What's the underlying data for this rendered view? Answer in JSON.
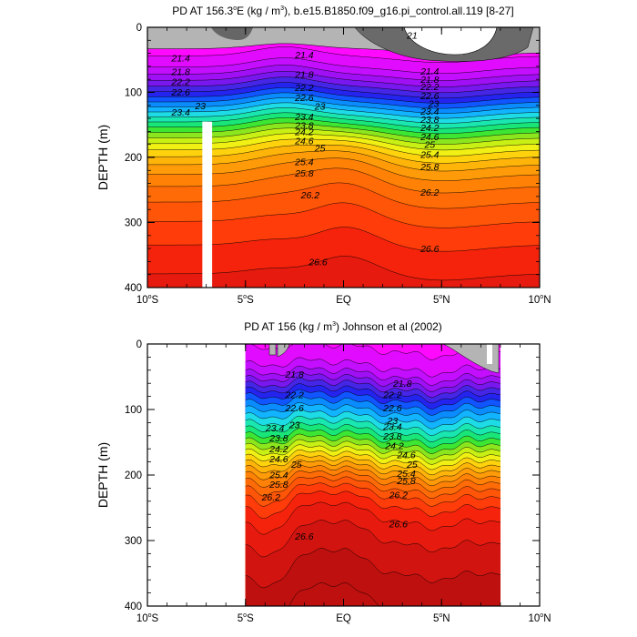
{
  "chart_data": [
    {
      "type": "contour",
      "title": "PD AT 156.3°E (kg / m3), b.e15.B1850.f09_g16.pi_control.all.119 [8-27]",
      "title_parts": {
        "lead": "PD AT 156.3",
        "deg": "o",
        "mid": "E (kg / m",
        "sup": "3",
        "tail": "), b.e15.B1850.f09_g16.pi_control.all.119 [8-27]"
      },
      "ylabel": "DEPTH (m)",
      "xlim": [
        -10,
        10
      ],
      "ylim": [
        400,
        0
      ],
      "x_ticks": [
        {
          "v": -10,
          "num": "10",
          "deg": "o",
          "hem": "S"
        },
        {
          "v": -5,
          "num": "5",
          "deg": "o",
          "hem": "S"
        },
        {
          "v": 0,
          "num": "EQ",
          "deg": "",
          "hem": ""
        },
        {
          "v": 5,
          "num": "5",
          "deg": "o",
          "hem": "N"
        },
        {
          "v": 10,
          "num": "10",
          "deg": "o",
          "hem": "N"
        }
      ],
      "y_ticks": [
        {
          "v": 0,
          "label": "0"
        },
        {
          "v": 100,
          "label": "100"
        },
        {
          "v": 200,
          "label": "200"
        },
        {
          "v": 300,
          "label": "300"
        },
        {
          "v": 400,
          "label": "400"
        }
      ],
      "contour_labels": [
        {
          "x": -8.3,
          "d": 47,
          "text": "21.4"
        },
        {
          "x": -8.3,
          "d": 68,
          "text": "21.8"
        },
        {
          "x": -8.3,
          "d": 83,
          "text": "22.2"
        },
        {
          "x": -8.3,
          "d": 99,
          "text": "22.6"
        },
        {
          "x": -7.3,
          "d": 120,
          "text": "23"
        },
        {
          "x": -8.3,
          "d": 130,
          "text": "23.4"
        },
        {
          "x": -2,
          "d": 42,
          "text": "21.4"
        },
        {
          "x": -2,
          "d": 72,
          "text": "21.8"
        },
        {
          "x": -2,
          "d": 92,
          "text": "22.2"
        },
        {
          "x": -2,
          "d": 108,
          "text": "22.6"
        },
        {
          "x": -1.2,
          "d": 121,
          "text": "23"
        },
        {
          "x": -2,
          "d": 137,
          "text": "23.4"
        },
        {
          "x": -2,
          "d": 150,
          "text": "23.8"
        },
        {
          "x": -2,
          "d": 160,
          "text": "24.2"
        },
        {
          "x": -2,
          "d": 174,
          "text": "24.6"
        },
        {
          "x": -1.2,
          "d": 185,
          "text": "25"
        },
        {
          "x": -2,
          "d": 206,
          "text": "25.4"
        },
        {
          "x": -2,
          "d": 224,
          "text": "25.8"
        },
        {
          "x": -1.7,
          "d": 257,
          "text": "26.2"
        },
        {
          "x": -1.3,
          "d": 360,
          "text": "26.6"
        },
        {
          "x": 4.4,
          "d": 67,
          "text": "21.4"
        },
        {
          "x": 4.4,
          "d": 80,
          "text": "21.8"
        },
        {
          "x": 4.4,
          "d": 91,
          "text": "22.2"
        },
        {
          "x": 4.4,
          "d": 105,
          "text": "22.6"
        },
        {
          "x": 4.6,
          "d": 117,
          "text": "23"
        },
        {
          "x": 4.4,
          "d": 129,
          "text": "23.4"
        },
        {
          "x": 4.4,
          "d": 141,
          "text": "23.8"
        },
        {
          "x": 4.4,
          "d": 154,
          "text": "24.2"
        },
        {
          "x": 4.4,
          "d": 168,
          "text": "24.6"
        },
        {
          "x": 4.4,
          "d": 180,
          "text": "25"
        },
        {
          "x": 4.4,
          "d": 195,
          "text": "25.4"
        },
        {
          "x": 4.4,
          "d": 214,
          "text": "25.8"
        },
        {
          "x": 4.4,
          "d": 253,
          "text": "26.2"
        },
        {
          "x": 4.4,
          "d": 340,
          "text": "26.6"
        },
        {
          "x": 3.5,
          "d": 12,
          "text": "21"
        }
      ]
    },
    {
      "type": "contour",
      "title": "PD AT 156 (kg / m3) Johnson et al (2002)",
      "title_parts": {
        "lead": "PD AT 156 (kg / m",
        "sup": "3",
        "tail": ") Johnson et al (2002)"
      },
      "ylabel": "DEPTH (m)",
      "xlim": [
        -10,
        10
      ],
      "ylim": [
        400,
        0
      ],
      "data_xlim": [
        -5,
        8
      ],
      "x_ticks": [
        {
          "v": -10,
          "num": "10",
          "deg": "o",
          "hem": "S"
        },
        {
          "v": -5,
          "num": "5",
          "deg": "o",
          "hem": "S"
        },
        {
          "v": 0,
          "num": "EQ",
          "deg": "",
          "hem": ""
        },
        {
          "v": 5,
          "num": "5",
          "deg": "o",
          "hem": "N"
        },
        {
          "v": 10,
          "num": "10",
          "deg": "o",
          "hem": "N"
        }
      ],
      "y_ticks": [
        {
          "v": 0,
          "label": "0"
        },
        {
          "v": 100,
          "label": "100"
        },
        {
          "v": 200,
          "label": "200"
        },
        {
          "v": 300,
          "label": "300"
        },
        {
          "v": 400,
          "label": "400"
        }
      ],
      "contour_labels": [
        {
          "x": -2.5,
          "d": 46,
          "text": "21.8"
        },
        {
          "x": -2.5,
          "d": 77,
          "text": "22.2"
        },
        {
          "x": -2.5,
          "d": 97,
          "text": "22.6"
        },
        {
          "x": -2.5,
          "d": 123,
          "text": "23"
        },
        {
          "x": -3.5,
          "d": 128,
          "text": "23.4"
        },
        {
          "x": -3.3,
          "d": 143,
          "text": "23.8"
        },
        {
          "x": -3.3,
          "d": 160,
          "text": "24.2"
        },
        {
          "x": -3.3,
          "d": 175,
          "text": "24.6"
        },
        {
          "x": -2.4,
          "d": 183,
          "text": "25"
        },
        {
          "x": -3.3,
          "d": 199,
          "text": "25.4"
        },
        {
          "x": -3.3,
          "d": 214,
          "text": "25.8"
        },
        {
          "x": -3.7,
          "d": 233,
          "text": "26.2"
        },
        {
          "x": -2,
          "d": 293,
          "text": "26.6"
        },
        {
          "x": 3,
          "d": 60,
          "text": "21.8"
        },
        {
          "x": 2.5,
          "d": 77,
          "text": "22.2"
        },
        {
          "x": 2.5,
          "d": 97,
          "text": "22.6"
        },
        {
          "x": 2.5,
          "d": 117,
          "text": "23"
        },
        {
          "x": 2.5,
          "d": 126,
          "text": "23.4"
        },
        {
          "x": 2.5,
          "d": 140,
          "text": "23.8"
        },
        {
          "x": 2.6,
          "d": 155,
          "text": "24.2"
        },
        {
          "x": 3.2,
          "d": 169,
          "text": "24.6"
        },
        {
          "x": 3.5,
          "d": 183,
          "text": "25"
        },
        {
          "x": 3.2,
          "d": 197,
          "text": "25.4"
        },
        {
          "x": 3.2,
          "d": 208,
          "text": "25.8"
        },
        {
          "x": 2.8,
          "d": 230,
          "text": "26.2"
        },
        {
          "x": 2.8,
          "d": 274,
          "text": "26.6"
        }
      ]
    }
  ]
}
